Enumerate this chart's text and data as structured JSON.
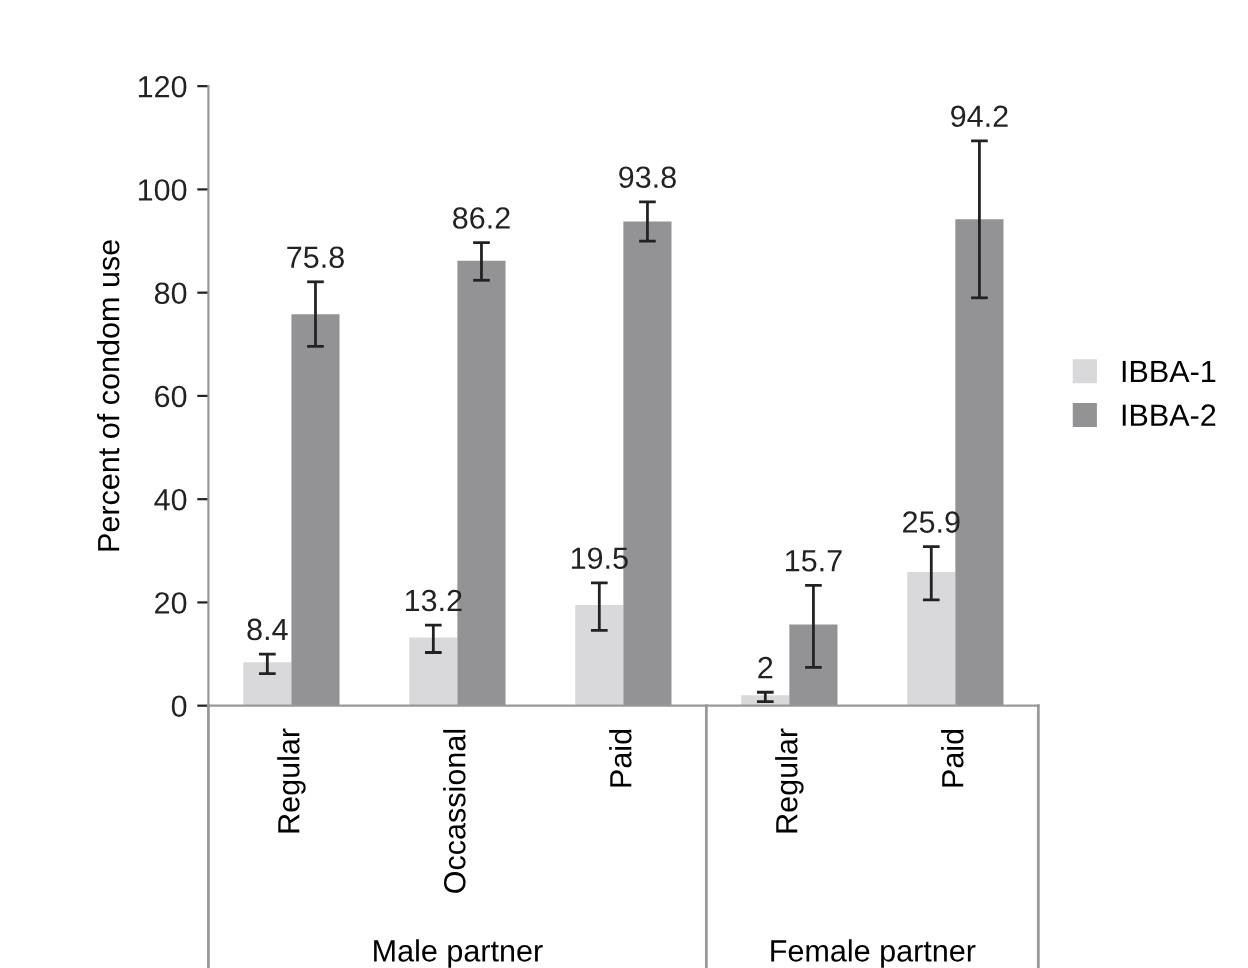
{
  "chart_data": {
    "type": "bar",
    "ylabel": "Percent of condom use",
    "categories": [
      "Regular",
      "Occassional",
      "Paid",
      "Regular",
      "Paid"
    ],
    "series": [
      {
        "name": "IBBA-1",
        "color": "#d9d9db",
        "values": [
          8.4,
          13.2,
          19.5,
          2,
          25.9
        ],
        "errors": [
          [
            6.2,
            10.0
          ],
          [
            10.3,
            15.6
          ],
          [
            14.6,
            23.8
          ],
          [
            0.8,
            2.6
          ],
          [
            20.5,
            30.8
          ]
        ]
      },
      {
        "name": "IBBA-2",
        "color": "#939396",
        "values": [
          75.8,
          86.2,
          93.8,
          15.7,
          94.2
        ],
        "errors": [
          [
            69.6,
            82.1
          ],
          [
            82.4,
            89.7
          ],
          [
            90.0,
            97.6
          ],
          [
            7.4,
            23.3
          ],
          [
            79.0,
            109.4
          ]
        ]
      }
    ],
    "ylim": [
      0,
      120
    ],
    "yticks": [
      0,
      20,
      40,
      60,
      80,
      100,
      120
    ],
    "data_labels": true,
    "grid": false,
    "legend": "right",
    "annotations": [
      "Male partner",
      "Female partner"
    ]
  }
}
